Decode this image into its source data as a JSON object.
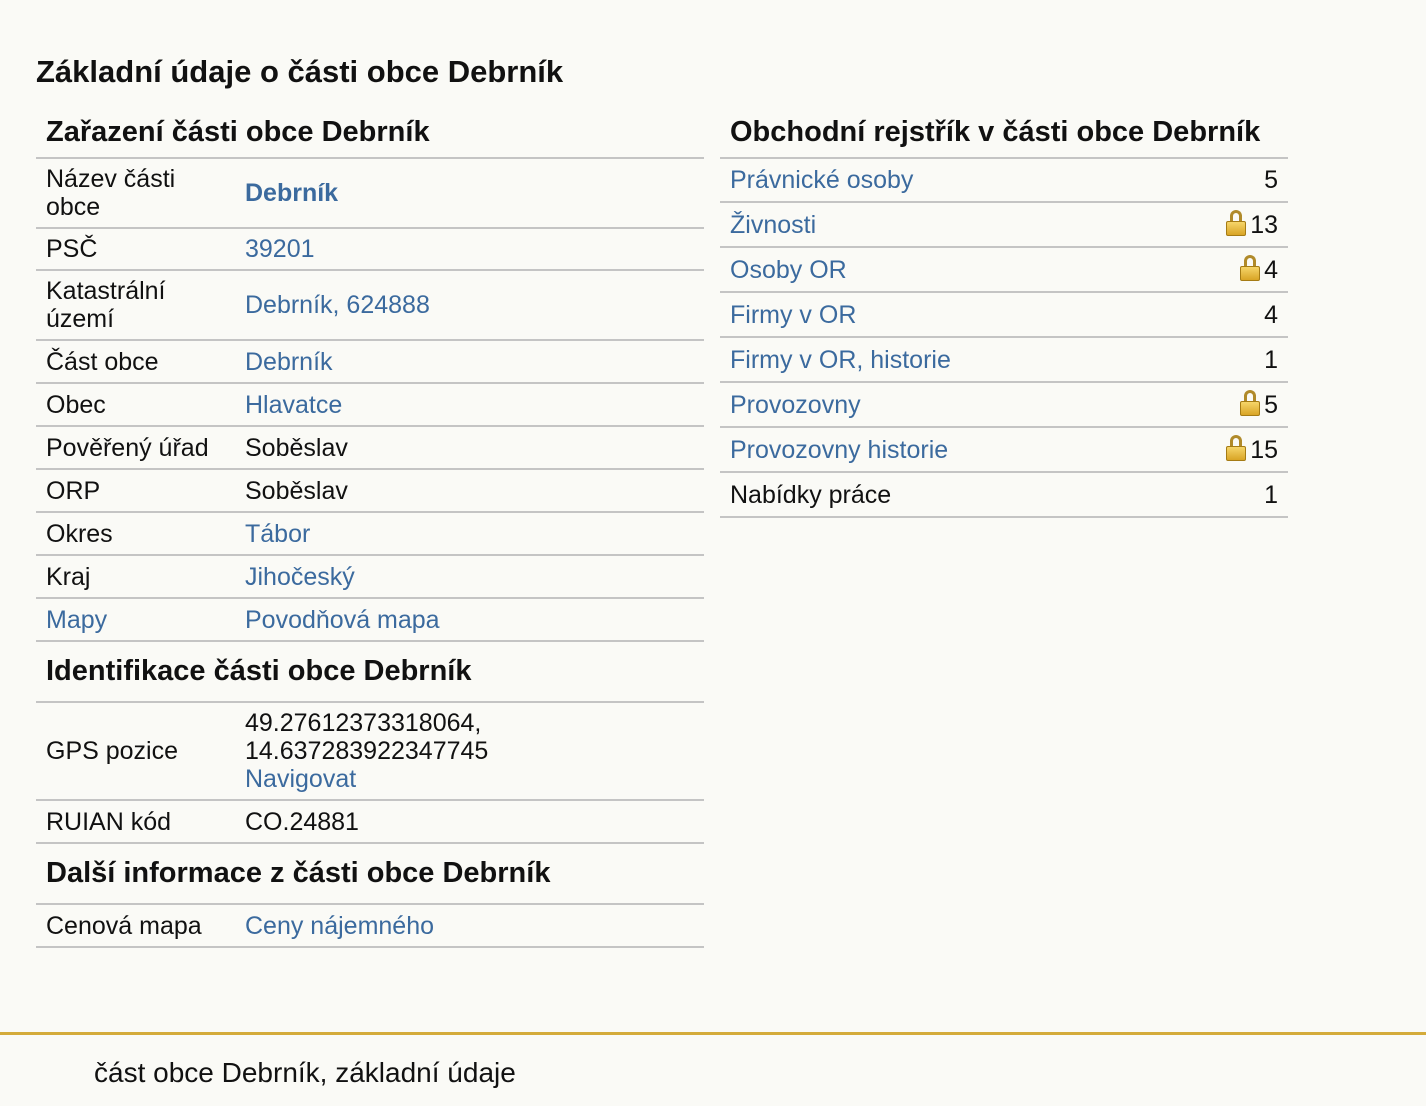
{
  "page_title": "Základní údaje o části obce Debrník",
  "zarazeni": {
    "heading": "Zařazení části obce Debrník",
    "rows": [
      {
        "label": "Název části obce",
        "value": "Debrník"
      },
      {
        "label": "PSČ",
        "value": "39201"
      },
      {
        "label": "Katastrální území",
        "value": "Debrník, 624888"
      },
      {
        "label": "Část obce",
        "value": "Debrník"
      },
      {
        "label": "Obec",
        "value": "Hlavatce"
      },
      {
        "label": "Pověřený úřad",
        "value": "Soběslav"
      },
      {
        "label": "ORP",
        "value": "Soběslav"
      },
      {
        "label": "Okres",
        "value": "Tábor"
      },
      {
        "label": "Kraj",
        "value": "Jihočeský"
      },
      {
        "label": "Mapy",
        "value": "Povodňová mapa"
      }
    ]
  },
  "identifikace": {
    "heading": "Identifikace části obce Debrník",
    "gps_label": "GPS pozice",
    "gps_lat": "49.27612373318064,",
    "gps_lon": "14.637283922347745",
    "navigate": "Navigovat",
    "ruian_label": "RUIAN kód",
    "ruian_value": "CO.24881"
  },
  "dalsi": {
    "heading": "Další informace z části obce Debrník",
    "label": "Cenová mapa",
    "value": "Ceny nájemného"
  },
  "rejstrik": {
    "heading": "Obchodní rejstřík v části obce Debrník",
    "rows": [
      {
        "label": "Právnické osoby",
        "count": "5",
        "locked": false,
        "link": true
      },
      {
        "label": "Živnosti",
        "count": "13",
        "locked": true,
        "link": true
      },
      {
        "label": "Osoby OR",
        "count": "4",
        "locked": true,
        "link": true
      },
      {
        "label": "Firmy v OR",
        "count": "4",
        "locked": false,
        "link": true
      },
      {
        "label": "Firmy v OR, historie",
        "count": "1",
        "locked": false,
        "link": true
      },
      {
        "label": "Provozovny",
        "count": "5",
        "locked": true,
        "link": true
      },
      {
        "label": "Provozovny historie",
        "count": "15",
        "locked": true,
        "link": true
      },
      {
        "label": "Nabídky práce",
        "count": "1",
        "locked": false,
        "link": false
      }
    ]
  },
  "footer": "část obce Debrník, základní údaje",
  "colors": {
    "link": "#3b6a9e",
    "footer_rule": "#d4ab3a",
    "lock": "#e8bd3e"
  }
}
